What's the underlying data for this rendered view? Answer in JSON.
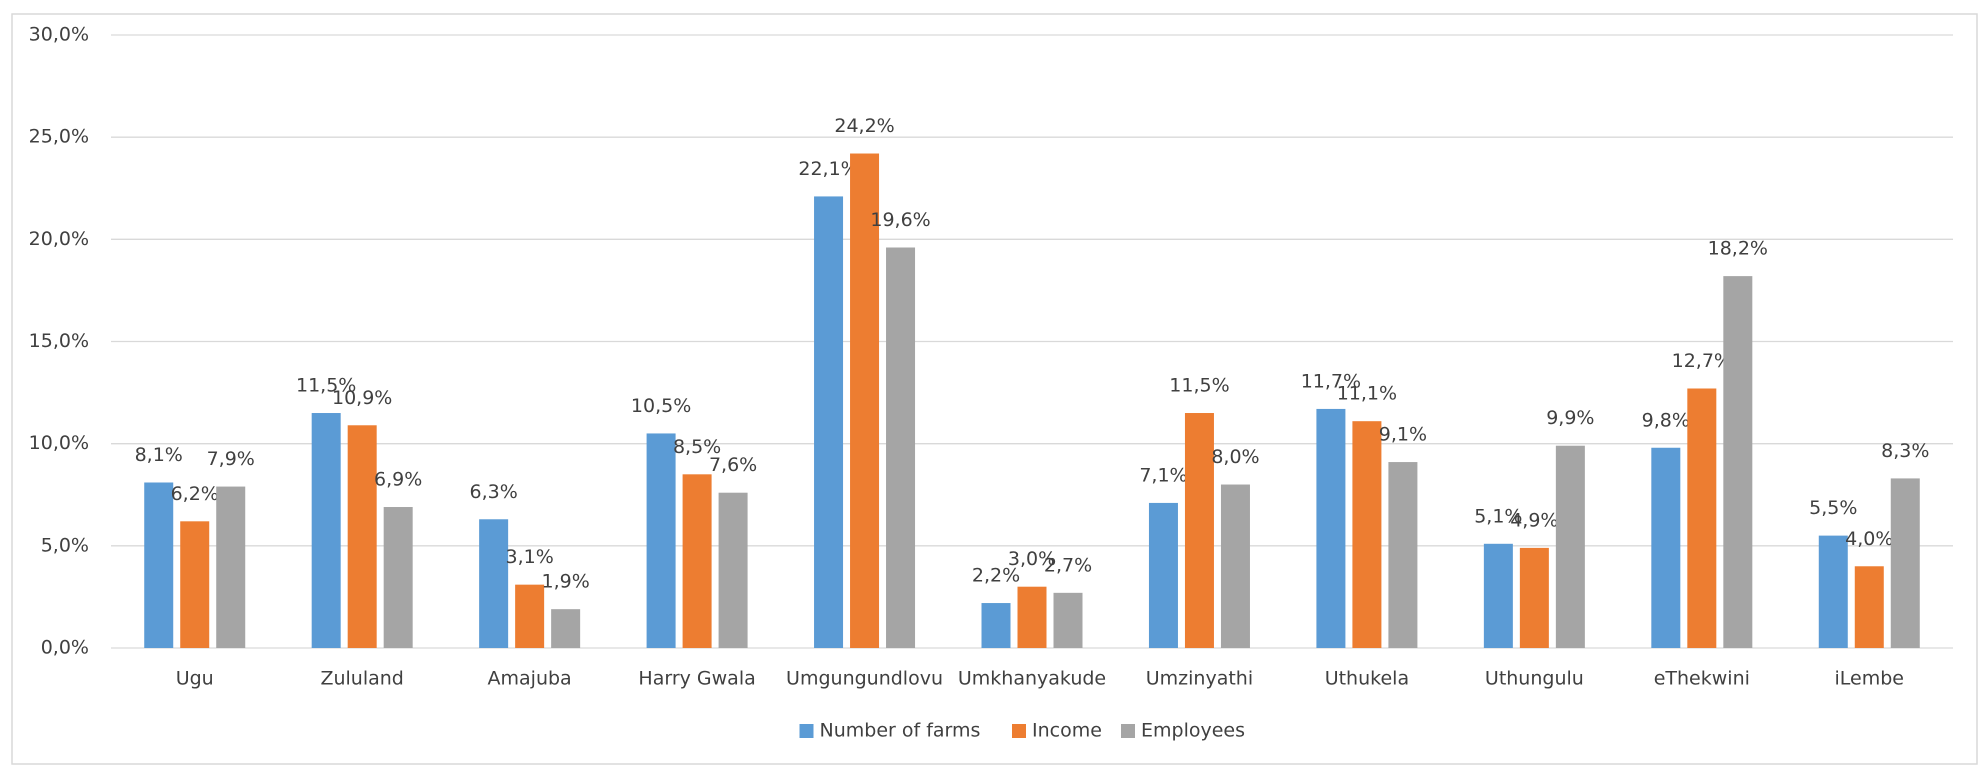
{
  "chart_data": {
    "type": "bar",
    "categories": [
      "Ugu",
      "Zululand",
      "Amajuba",
      "Harry Gwala",
      "Umgungundlovu",
      "Umkhanyakude",
      "Umzinyathi",
      "Uthukela",
      "Uthungulu",
      "eThekwini",
      "iLembe"
    ],
    "series": [
      {
        "name": "Number of farms",
        "color": "#5b9bd5",
        "values": [
          8.1,
          11.5,
          6.3,
          10.5,
          22.1,
          2.2,
          7.1,
          11.7,
          5.1,
          9.8,
          5.5
        ],
        "value_labels": [
          "8,1%",
          "11,5%",
          "6,3%",
          "10,5%",
          "22,1%",
          "2,2%",
          "7,1%",
          "11,7%",
          "5,1%",
          "9,8%",
          "5,5%"
        ]
      },
      {
        "name": "Income",
        "color": "#ed7d31",
        "values": [
          6.2,
          10.9,
          3.1,
          8.5,
          24.2,
          3.0,
          11.5,
          11.1,
          4.9,
          12.7,
          4.0
        ],
        "value_labels": [
          "6,2%",
          "10,9%",
          "3,1%",
          "8,5%",
          "24,2%",
          "3,0%",
          "11,5%",
          "11,1%",
          "4,9%",
          "12,7%",
          "4,0%"
        ]
      },
      {
        "name": "Employees",
        "color": "#a5a5a5",
        "values": [
          7.9,
          6.9,
          1.9,
          7.6,
          19.6,
          2.7,
          8.0,
          9.1,
          9.9,
          18.2,
          8.3
        ],
        "value_labels": [
          "7,9%",
          "6,9%",
          "1,9%",
          "7,6%",
          "19,6%",
          "2,7%",
          "8,0%",
          "9,1%",
          "9,9%",
          "18,2%",
          "8,3%"
        ]
      }
    ],
    "ylim": [
      0,
      30
    ],
    "yticks": [
      {
        "value": 0,
        "label": "0,0%"
      },
      {
        "value": 5,
        "label": "5,0%"
      },
      {
        "value": 10,
        "label": "10,0%"
      },
      {
        "value": 15,
        "label": "15,0%"
      },
      {
        "value": 20,
        "label": "20,0%"
      },
      {
        "value": 25,
        "label": "25,0%"
      },
      {
        "value": 30,
        "label": "30,0%"
      }
    ],
    "grid": true,
    "legend": "bottom"
  }
}
